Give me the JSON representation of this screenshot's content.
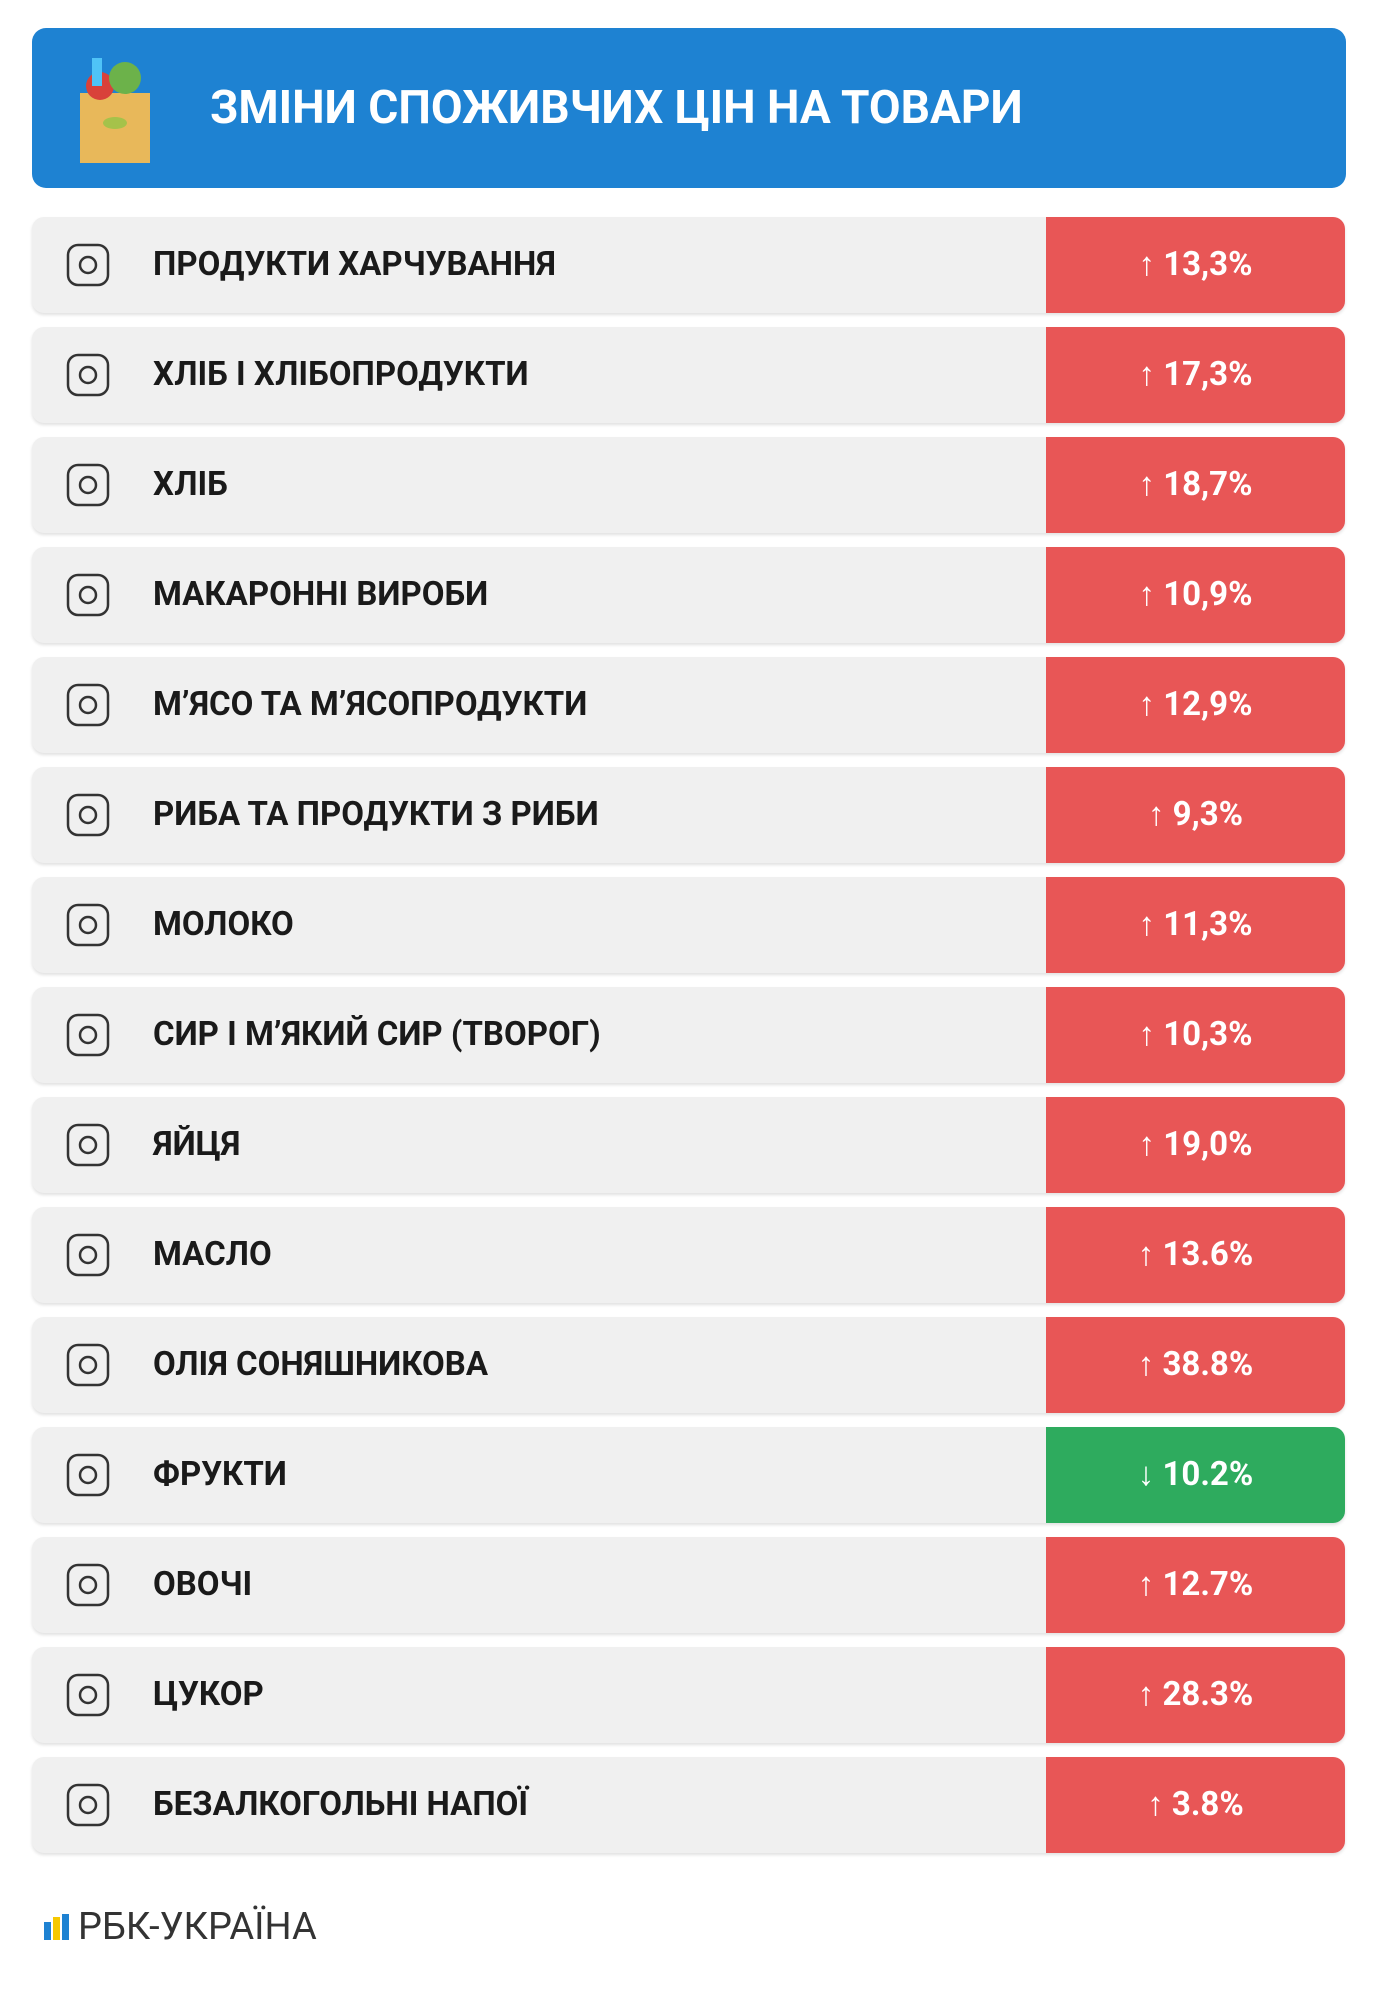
{
  "header": {
    "title": "ЗМІНИ СПОЖИВЧИХ ЦІН НА ТОВАРИ"
  },
  "table": {
    "rows": [
      {
        "label": "ПРОДУКТИ ХАРЧУВАННЯ",
        "arrow": "↑",
        "change": "13,3%",
        "color": "#e85656"
      },
      {
        "label": "ХЛІБ І ХЛІБОПРОДУКТИ",
        "arrow": "↑",
        "change": "17,3%",
        "color": "#e85656"
      },
      {
        "label": "ХЛІБ",
        "arrow": "↑",
        "change": "18,7%",
        "color": "#e85656"
      },
      {
        "label": "МАКАРОННІ ВИРОБИ",
        "arrow": "↑",
        "change": "10,9%",
        "color": "#e85656"
      },
      {
        "label": "М’ЯСО ТА М’ЯСОПРОДУКТИ",
        "arrow": "↑",
        "change": "12,9%",
        "color": "#e85656"
      },
      {
        "label": "РИБА ТА ПРОДУКТИ З РИБИ",
        "arrow": "↑",
        "change": "9,3%",
        "color": "#e85656"
      },
      {
        "label": "МОЛОКО",
        "arrow": "↑",
        "change": "11,3%",
        "color": "#e85656"
      },
      {
        "label": "СИР І М’ЯКИЙ СИР (ТВОРОГ)",
        "arrow": "↑",
        "change": "10,3%",
        "color": "#e85656"
      },
      {
        "label": "ЯЙЦЯ",
        "arrow": "↑",
        "change": "19,0%",
        "color": "#e85656"
      },
      {
        "label": "МАСЛО",
        "arrow": "↑",
        "change": "13.6%",
        "color": "#e85656"
      },
      {
        "label": "ОЛІЯ СОНЯШНИКОВА",
        "arrow": "↑",
        "change": "38.8%",
        "color": "#e85656"
      },
      {
        "label": "ФРУКТИ",
        "arrow": "↓",
        "change": "10.2%",
        "color": "#2eab5e"
      },
      {
        "label": "ОВОЧІ",
        "arrow": "↑",
        "change": "12.7%",
        "color": "#e85656"
      },
      {
        "label": "ЦУКОР",
        "arrow": "↑",
        "change": "28.3%",
        "color": "#e85656"
      },
      {
        "label": "БЕЗАЛКОГОЛЬНІ НАПОЇ",
        "arrow": "↑",
        "change": "3.8%",
        "color": "#e85656"
      }
    ]
  },
  "footer": {
    "brand": "РБК-УКРАЇНА"
  }
}
